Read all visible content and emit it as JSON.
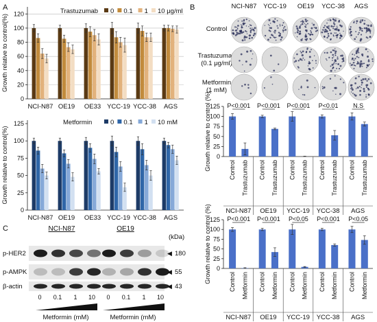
{
  "panel_labels": {
    "a": "A",
    "b": "B",
    "c": "C"
  },
  "colors": {
    "tras": [
      "#5a3a14",
      "#c28b3c",
      "#e2b27c",
      "#f3ddc3"
    ],
    "met": [
      "#1d3b67",
      "#2f66a8",
      "#86a9d8",
      "#d2e0f1"
    ],
    "bar_blue": "#4a70c8"
  },
  "chart_data": [
    {
      "id": "a_top",
      "type": "bar",
      "ylabel": "Growth relative to control(%)",
      "yticks": [
        0,
        20,
        40,
        60,
        80,
        100,
        120
      ],
      "ylim": [
        0,
        130
      ],
      "categories": [
        "NCI-N87",
        "OE19",
        "OE33",
        "YCC-19",
        "YCC-38",
        "AGS"
      ],
      "legend_title": "Trastuzumab",
      "grid": true,
      "series": [
        {
          "name": "0",
          "values": [
            100,
            100,
            100,
            100,
            100,
            100
          ],
          "err": [
            5,
            4,
            6,
            8,
            7,
            4
          ]
        },
        {
          "name": "0.1",
          "values": [
            86,
            85,
            95,
            87,
            96,
            100
          ],
          "err": [
            6,
            5,
            7,
            8,
            7,
            4
          ]
        },
        {
          "name": "1",
          "values": [
            64,
            73,
            90,
            80,
            87,
            99
          ],
          "err": [
            7,
            6,
            8,
            7,
            6,
            4
          ]
        },
        {
          "name": "10 μg/ml",
          "values": [
            57,
            70,
            84,
            76,
            87,
            98
          ],
          "err": [
            6,
            6,
            8,
            10,
            6,
            5
          ]
        }
      ]
    },
    {
      "id": "a_bottom",
      "type": "bar",
      "ylabel": "Growth relative to control(%)",
      "yticks": [
        0,
        25,
        50,
        75,
        100,
        125
      ],
      "ylim": [
        0,
        130
      ],
      "categories": [
        "NCI-N87",
        "OE19",
        "OE33",
        "YCC-19",
        "YCC-38",
        "AGS"
      ],
      "legend_title": "Metformin",
      "grid": false,
      "series": [
        {
          "name": "0",
          "values": [
            100,
            100,
            100,
            100,
            100,
            100
          ],
          "err": [
            4,
            4,
            5,
            7,
            6,
            4
          ]
        },
        {
          "name": "0.1",
          "values": [
            86,
            82,
            90,
            84,
            88,
            94
          ],
          "err": [
            5,
            5,
            6,
            7,
            8,
            4
          ]
        },
        {
          "name": "1",
          "values": [
            60,
            67,
            74,
            63,
            65,
            88
          ],
          "err": [
            6,
            6,
            7,
            7,
            7,
            6
          ]
        },
        {
          "name": "10 mM",
          "values": [
            50,
            48,
            56,
            33,
            50,
            72
          ],
          "err": [
            5,
            6,
            4,
            6,
            7,
            6
          ]
        }
      ]
    },
    {
      "id": "b_trastuzumab",
      "type": "bar",
      "ylabel": "Growth relative to control (%)",
      "yticks": [
        0,
        25,
        50,
        75,
        100,
        125
      ],
      "ylim": [
        0,
        125
      ],
      "groups": [
        {
          "name": "NCI-N87",
          "p": "P<0.001",
          "values": [
            100,
            19
          ],
          "err": [
            7,
            15
          ]
        },
        {
          "name": "OE19",
          "p": "P<0.001",
          "values": [
            100,
            69
          ],
          "err": [
            3,
            2
          ]
        },
        {
          "name": "YCC-19",
          "p": "P<0.001",
          "values": [
            100,
            0
          ],
          "err": [
            12,
            1
          ]
        },
        {
          "name": "YCC-38",
          "p": "P<0.01",
          "values": [
            100,
            53
          ],
          "err": [
            4,
            12
          ]
        },
        {
          "name": "AGS",
          "p": "N.S",
          "values": [
            100,
            81
          ],
          "err": [
            9,
            5
          ]
        }
      ],
      "bar_labels": [
        "Control",
        "Trastuzumab"
      ]
    },
    {
      "id": "b_metformin",
      "type": "bar",
      "ylabel": "Growth relative to control (%)",
      "yticks": [
        0,
        25,
        50,
        75,
        100,
        125
      ],
      "ylim": [
        0,
        125
      ],
      "groups": [
        {
          "name": "NCI-N87",
          "p": "P<0.001",
          "values": [
            100,
            1
          ],
          "err": [
            5,
            1
          ]
        },
        {
          "name": "OE19",
          "p": "P<0.001",
          "values": [
            100,
            42
          ],
          "err": [
            3,
            11
          ]
        },
        {
          "name": "YCC-19",
          "p": "P<0.05",
          "values": [
            100,
            4
          ],
          "err": [
            13,
            1
          ]
        },
        {
          "name": "YCC-38",
          "p": "P<0.001",
          "values": [
            100,
            60
          ],
          "err": [
            3,
            3
          ]
        },
        {
          "name": "AGS",
          "p": "P<0.05",
          "values": [
            100,
            73
          ],
          "err": [
            8,
            11
          ]
        }
      ],
      "bar_labels": [
        "Control",
        "Metformin"
      ]
    }
  ],
  "colony": {
    "cells": [
      "NCI-N87",
      "YCC-19",
      "OE19",
      "YCC-38",
      "AGS"
    ],
    "rows": [
      "Control",
      "Trastuzumab",
      "(0.1 μg/ml)",
      "Metformin",
      "(1 mM)"
    ]
  },
  "blot": {
    "cells": [
      "NCI-N87",
      "OE19"
    ],
    "kda": "(kDa)",
    "bands": [
      {
        "label": "p-HER2",
        "mw": "180"
      },
      {
        "label": "p-AMPK",
        "mw": "55"
      },
      {
        "label": "β-actin",
        "mw": "43"
      }
    ],
    "doses": [
      "0",
      "0.1",
      "1",
      "10"
    ],
    "xlabel": "Metformin (mM)"
  }
}
